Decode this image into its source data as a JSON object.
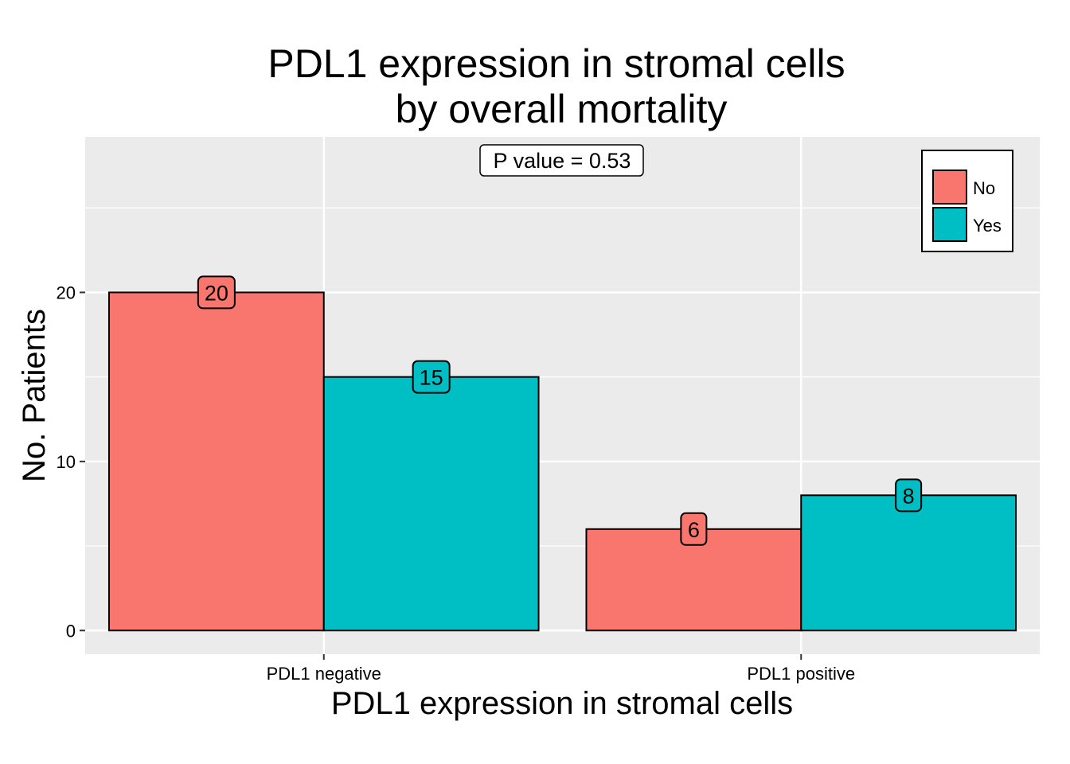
{
  "chart_data": {
    "type": "bar",
    "title": "PDL1 expression in stromal cells\nby overall mortality",
    "xlabel": "PDL1 expression in stromal cells",
    "ylabel": "No. Patients",
    "categories": [
      "PDL1 negative",
      "PDL1 positive"
    ],
    "series": [
      {
        "name": "No",
        "color": "#F8766D",
        "values": [
          20,
          6
        ]
      },
      {
        "name": "Yes",
        "color": "#00BFC4",
        "values": [
          15,
          8
        ]
      }
    ],
    "ylim": [
      -1.4,
      29.2
    ],
    "y_ticks": [
      0,
      10,
      20
    ],
    "y_minor_ticks": [
      5,
      15,
      25
    ],
    "annotation": "P value = 0.53",
    "legend_position": "top-right",
    "grid": true,
    "panel_color": "#EBEBEB"
  }
}
